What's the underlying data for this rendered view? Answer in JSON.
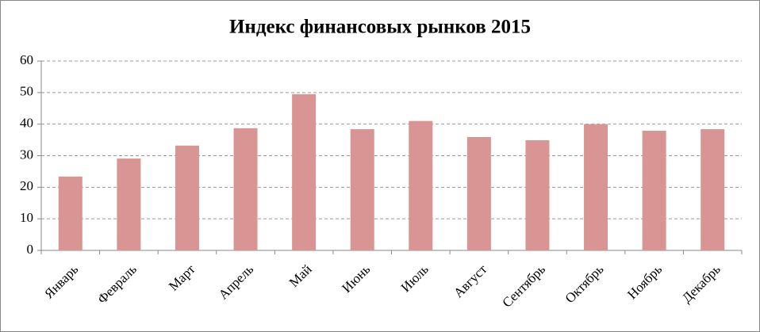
{
  "chart_data": {
    "type": "bar",
    "title": "Индекс финансовых рынков 2015",
    "categories": [
      "Январь",
      "Февраль",
      "Март",
      "Апрель",
      "Май",
      "Июнь",
      "Июль",
      "Август",
      "Сентябрь",
      "Октябрь",
      "Ноябрь",
      "Декабрь"
    ],
    "values": [
      23.4,
      29.1,
      33.2,
      38.7,
      49.5,
      38.4,
      41.0,
      35.9,
      34.9,
      40.0,
      37.9,
      38.4
    ],
    "color": "#d99594",
    "ylim": [
      0,
      60
    ],
    "yticks": [
      0,
      10,
      20,
      30,
      40,
      50,
      60
    ],
    "grid": true
  }
}
